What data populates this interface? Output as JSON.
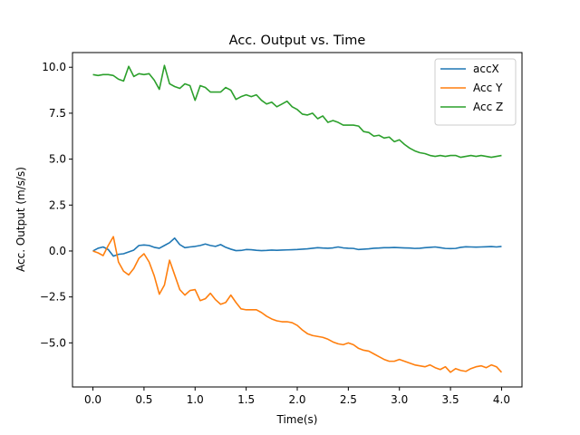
{
  "chart_data": {
    "type": "line",
    "title": "Acc. Output vs. Time",
    "xlabel": "Time(s)",
    "ylabel": "Acc. Output (m/s/s)",
    "xlim": [
      -0.2,
      4.2
    ],
    "ylim": [
      -7.4,
      10.8
    ],
    "xticks": [
      0.0,
      0.5,
      1.0,
      1.5,
      2.0,
      2.5,
      3.0,
      3.5,
      4.0
    ],
    "xtick_labels": [
      "0.0",
      "0.5",
      "1.0",
      "1.5",
      "2.0",
      "2.5",
      "3.0",
      "3.5",
      "4.0"
    ],
    "yticks": [
      -5.0,
      -2.5,
      0.0,
      2.5,
      5.0,
      7.5,
      10.0
    ],
    "ytick_labels": [
      "−5.0",
      "−2.5",
      "0.0",
      "2.5",
      "5.0",
      "7.5",
      "10.0"
    ],
    "grid": false,
    "legend_position": "top-right",
    "series": [
      {
        "name": "accX",
        "color": "#1f77b4",
        "x": [
          0,
          0.05,
          0.1,
          0.15,
          0.2,
          0.25,
          0.3,
          0.35,
          0.4,
          0.45,
          0.5,
          0.55,
          0.6,
          0.65,
          0.7,
          0.75,
          0.8,
          0.85,
          0.9,
          0.95,
          1.0,
          1.05,
          1.1,
          1.15,
          1.2,
          1.25,
          1.3,
          1.35,
          1.4,
          1.45,
          1.5,
          1.55,
          1.6,
          1.65,
          1.7,
          1.75,
          1.8,
          1.85,
          1.9,
          1.95,
          2.0,
          2.05,
          2.1,
          2.15,
          2.2,
          2.25,
          2.3,
          2.35,
          2.4,
          2.45,
          2.5,
          2.55,
          2.6,
          2.65,
          2.7,
          2.75,
          2.8,
          2.85,
          2.9,
          2.95,
          3.0,
          3.05,
          3.1,
          3.15,
          3.2,
          3.25,
          3.3,
          3.35,
          3.4,
          3.45,
          3.5,
          3.55,
          3.6,
          3.65,
          3.7,
          3.75,
          3.8,
          3.85,
          3.9,
          3.95,
          4.0
        ],
        "values": [
          0.0,
          0.15,
          0.22,
          0.08,
          -0.28,
          -0.18,
          -0.15,
          -0.05,
          0.05,
          0.3,
          0.33,
          0.3,
          0.2,
          0.15,
          0.3,
          0.45,
          0.7,
          0.35,
          0.18,
          0.22,
          0.25,
          0.3,
          0.38,
          0.3,
          0.25,
          0.35,
          0.2,
          0.1,
          0.02,
          0.03,
          0.08,
          0.07,
          0.04,
          0.02,
          0.03,
          0.05,
          0.04,
          0.05,
          0.06,
          0.07,
          0.08,
          0.1,
          0.12,
          0.15,
          0.18,
          0.16,
          0.15,
          0.17,
          0.22,
          0.17,
          0.15,
          0.14,
          0.08,
          0.1,
          0.12,
          0.15,
          0.16,
          0.18,
          0.18,
          0.19,
          0.18,
          0.17,
          0.16,
          0.14,
          0.15,
          0.18,
          0.2,
          0.22,
          0.18,
          0.14,
          0.13,
          0.14,
          0.2,
          0.23,
          0.22,
          0.21,
          0.22,
          0.23,
          0.24,
          0.22,
          0.25
        ]
      },
      {
        "name": "Acc Y",
        "color": "#ff7f0e",
        "x": [
          0,
          0.05,
          0.1,
          0.15,
          0.2,
          0.25,
          0.3,
          0.35,
          0.4,
          0.45,
          0.5,
          0.55,
          0.6,
          0.65,
          0.7,
          0.75,
          0.8,
          0.85,
          0.9,
          0.95,
          1.0,
          1.05,
          1.1,
          1.15,
          1.2,
          1.25,
          1.3,
          1.35,
          1.4,
          1.45,
          1.5,
          1.55,
          1.6,
          1.65,
          1.7,
          1.75,
          1.8,
          1.85,
          1.9,
          1.95,
          2.0,
          2.05,
          2.1,
          2.15,
          2.2,
          2.25,
          2.3,
          2.35,
          2.4,
          2.45,
          2.5,
          2.55,
          2.6,
          2.65,
          2.7,
          2.75,
          2.8,
          2.85,
          2.9,
          2.95,
          3.0,
          3.05,
          3.1,
          3.15,
          3.2,
          3.25,
          3.3,
          3.35,
          3.4,
          3.45,
          3.5,
          3.55,
          3.6,
          3.65,
          3.7,
          3.75,
          3.8,
          3.85,
          3.9,
          3.95,
          4.0
        ],
        "values": [
          0.0,
          -0.1,
          -0.25,
          0.3,
          0.78,
          -0.6,
          -1.1,
          -1.3,
          -0.95,
          -0.4,
          -0.15,
          -0.6,
          -1.35,
          -2.35,
          -1.85,
          -0.5,
          -1.3,
          -2.1,
          -2.4,
          -2.15,
          -2.1,
          -2.7,
          -2.6,
          -2.3,
          -2.65,
          -2.9,
          -2.8,
          -2.4,
          -2.8,
          -3.15,
          -3.2,
          -3.2,
          -3.2,
          -3.35,
          -3.55,
          -3.7,
          -3.8,
          -3.85,
          -3.85,
          -3.9,
          -4.05,
          -4.3,
          -4.5,
          -4.6,
          -4.65,
          -4.7,
          -4.8,
          -4.95,
          -5.05,
          -5.1,
          -5.0,
          -5.1,
          -5.3,
          -5.4,
          -5.45,
          -5.6,
          -5.75,
          -5.9,
          -6.0,
          -6.0,
          -5.9,
          -6.0,
          -6.1,
          -6.2,
          -6.25,
          -6.3,
          -6.2,
          -6.35,
          -6.45,
          -6.3,
          -6.6,
          -6.4,
          -6.5,
          -6.55,
          -6.4,
          -6.3,
          -6.25,
          -6.35,
          -6.2,
          -6.3,
          -6.6
        ]
      },
      {
        "name": "Acc Z",
        "color": "#2ca02c",
        "x": [
          0,
          0.05,
          0.1,
          0.15,
          0.2,
          0.25,
          0.3,
          0.35,
          0.4,
          0.45,
          0.5,
          0.55,
          0.6,
          0.65,
          0.7,
          0.75,
          0.8,
          0.85,
          0.9,
          0.95,
          1.0,
          1.05,
          1.1,
          1.15,
          1.2,
          1.25,
          1.3,
          1.35,
          1.4,
          1.45,
          1.5,
          1.55,
          1.6,
          1.65,
          1.7,
          1.75,
          1.8,
          1.85,
          1.9,
          1.95,
          2.0,
          2.05,
          2.1,
          2.15,
          2.2,
          2.25,
          2.3,
          2.35,
          2.4,
          2.45,
          2.5,
          2.55,
          2.6,
          2.65,
          2.7,
          2.75,
          2.8,
          2.85,
          2.9,
          2.95,
          3.0,
          3.05,
          3.1,
          3.15,
          3.2,
          3.25,
          3.3,
          3.35,
          3.4,
          3.45,
          3.5,
          3.55,
          3.6,
          3.65,
          3.7,
          3.75,
          3.8,
          3.85,
          3.9,
          3.95,
          4.0
        ],
        "values": [
          9.6,
          9.55,
          9.6,
          9.6,
          9.55,
          9.35,
          9.25,
          10.05,
          9.5,
          9.65,
          9.6,
          9.65,
          9.3,
          8.8,
          10.1,
          9.1,
          8.95,
          8.85,
          9.1,
          9.0,
          8.2,
          9.0,
          8.9,
          8.65,
          8.65,
          8.65,
          8.9,
          8.75,
          8.25,
          8.4,
          8.5,
          8.4,
          8.5,
          8.2,
          8.0,
          8.1,
          7.85,
          8.0,
          8.15,
          7.85,
          7.7,
          7.45,
          7.4,
          7.5,
          7.2,
          7.35,
          7.0,
          7.1,
          7.0,
          6.85,
          6.85,
          6.85,
          6.8,
          6.5,
          6.45,
          6.25,
          6.3,
          6.15,
          6.2,
          5.95,
          6.05,
          5.8,
          5.6,
          5.45,
          5.35,
          5.3,
          5.2,
          5.15,
          5.2,
          5.15,
          5.2,
          5.2,
          5.1,
          5.15,
          5.2,
          5.15,
          5.2,
          5.15,
          5.1,
          5.15,
          5.2
        ]
      }
    ]
  }
}
